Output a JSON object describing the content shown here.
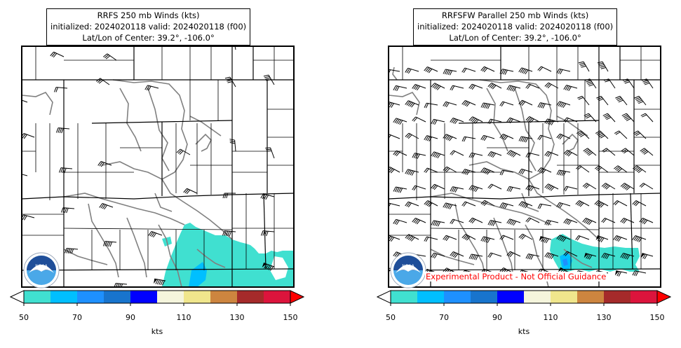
{
  "chart_data": [
    {
      "type": "heatmap",
      "title_lines": [
        "RRFS 250 mb Winds (kts)",
        "initialized: 2024020118 valid: 2024020118 (f00)",
        "Lat/Lon of Center: 39.2°, -106.0°"
      ],
      "colorbar": {
        "label": "kts",
        "ticks": [
          "50",
          "70",
          "90",
          "110",
          "130",
          "150"
        ],
        "range": [
          50,
          150
        ],
        "bins": [
          50,
          60,
          70,
          80,
          90,
          100,
          110,
          120,
          130,
          140,
          150
        ],
        "colors": [
          "#40e0d0",
          "#00bfff",
          "#1e90ff",
          "#1874cd",
          "#0000ff",
          "#f5f5dc",
          "#f0e68c",
          "#cd853f",
          "#a52a2a",
          "#dc143c"
        ],
        "under_color": "#ffffff",
        "over_color": "#ff0000"
      }
    },
    {
      "type": "heatmap",
      "title_lines": [
        "RRFSFW Parallel 250 mb Winds (kts)",
        "initialized: 2024020118 valid: 2024020118 (f00)",
        "Lat/Lon of Center: 39.2°, -106.0°"
      ],
      "annotation": "Experimental Product - Not Official Guidance",
      "colorbar": {
        "label": "kts",
        "ticks": [
          "50",
          "70",
          "90",
          "110",
          "130",
          "150"
        ],
        "range": [
          50,
          150
        ],
        "bins": [
          50,
          60,
          70,
          80,
          90,
          100,
          110,
          120,
          130,
          140,
          150
        ],
        "colors": [
          "#40e0d0",
          "#00bfff",
          "#1e90ff",
          "#1874cd",
          "#0000ff",
          "#f5f5dc",
          "#f0e68c",
          "#cd853f",
          "#a52a2a",
          "#dc143c"
        ],
        "under_color": "#ffffff",
        "over_color": "#ff0000"
      }
    }
  ],
  "logo_text": "NOAA",
  "colors": {
    "state_border": "#000000",
    "county_border": "#808080",
    "barb": "#000000"
  }
}
